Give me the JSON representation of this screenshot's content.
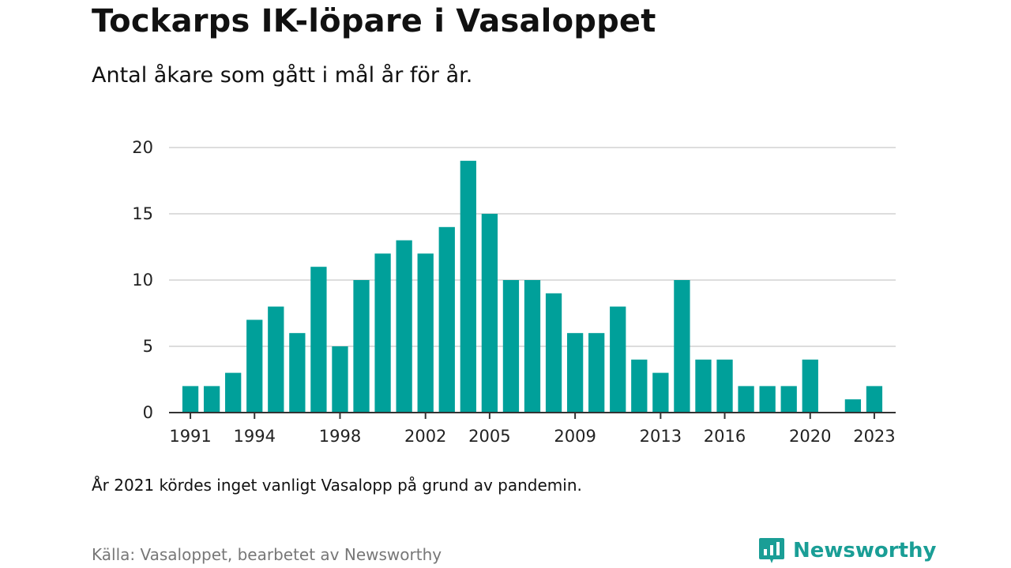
{
  "header": {
    "title": "Tockarps IK-löpare i Vasaloppet",
    "subtitle": "Antal åkare som gått i mål år för år."
  },
  "footer": {
    "note": "År 2021 kördes inget vanligt Vasalopp på grund av pandemin.",
    "source": "Källa: Vasaloppet, bearbetet av Newsworthy",
    "brand": "Newsworthy",
    "brand_icon": "bar-chart-speech-bubble-icon",
    "brand_color": "#1a9e96"
  },
  "chart_data": {
    "type": "bar",
    "title": "Tockarps IK-löpare i Vasaloppet",
    "subtitle": "Antal åkare som gått i mål år för år.",
    "xlabel": "",
    "ylabel": "",
    "bar_color": "#00a09a",
    "grid": true,
    "ylim": [
      0,
      20
    ],
    "yticks": [
      0,
      5,
      10,
      15,
      20
    ],
    "xlim": [
      1990,
      2024
    ],
    "xticks": [
      1991,
      1994,
      1998,
      2002,
      2005,
      2009,
      2013,
      2016,
      2020,
      2023
    ],
    "x": [
      1991,
      1992,
      1993,
      1994,
      1995,
      1996,
      1997,
      1998,
      1999,
      2000,
      2001,
      2002,
      2003,
      2004,
      2005,
      2006,
      2007,
      2008,
      2009,
      2010,
      2011,
      2012,
      2013,
      2014,
      2015,
      2016,
      2017,
      2018,
      2019,
      2020,
      2022,
      2023
    ],
    "values": [
      2,
      2,
      3,
      7,
      8,
      6,
      11,
      5,
      10,
      12,
      13,
      12,
      14,
      19,
      15,
      10,
      10,
      9,
      6,
      6,
      8,
      4,
      3,
      10,
      4,
      4,
      2,
      2,
      2,
      4,
      1,
      2
    ]
  }
}
